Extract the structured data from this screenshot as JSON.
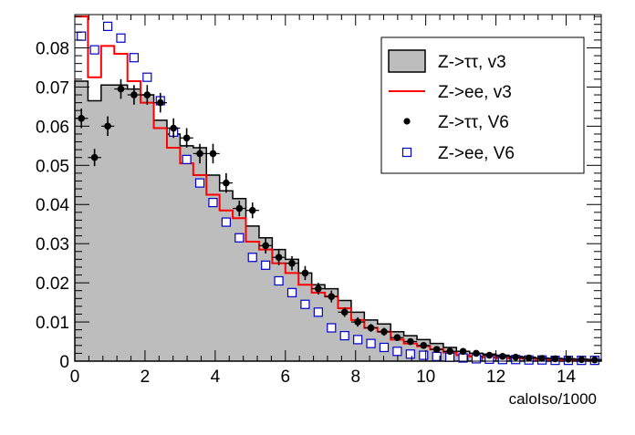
{
  "chart_data": {
    "type": "histogram",
    "xlabel": "caloIso/1000",
    "xlim": [
      0,
      15
    ],
    "ylim": [
      0,
      0.0885
    ],
    "bin_width": 0.375,
    "x_ticks": [
      "0",
      "2",
      "4",
      "6",
      "8",
      "10",
      "12",
      "14"
    ],
    "y_ticks": [
      "0",
      "0.01",
      "0.02",
      "0.03",
      "0.04",
      "0.05",
      "0.06",
      "0.07",
      "0.08"
    ],
    "legend_position": "top-right",
    "legend": {
      "h_v3": "Z->ττ, v3",
      "r_v3": "Z->ee, v3",
      "p_v6": "Z->ττ, V6",
      "b_v6": "Z->ee, V6"
    },
    "colors": {
      "h_v3_fill": "#bdbdbd",
      "h_v3_line": "#000000",
      "r_v3": "#ff0000",
      "p_v6": "#000000",
      "b_v6": "#0000cc"
    },
    "series": {
      "h_v3": [
        0.0715,
        0.0665,
        0.0705,
        0.0705,
        0.0695,
        0.068,
        0.0615,
        0.058,
        0.055,
        0.0545,
        0.0475,
        0.0435,
        0.0415,
        0.0345,
        0.0315,
        0.0285,
        0.026,
        0.0225,
        0.0195,
        0.0185,
        0.0155,
        0.0125,
        0.0105,
        0.0095,
        0.0075,
        0.0065,
        0.0055,
        0.0045,
        0.0035,
        0.0025,
        0.002,
        0.0018,
        0.0015,
        0.0012,
        0.001,
        0.0008,
        0.0007,
        0.0006,
        0.0005,
        0.0004
      ],
      "r_v3": [
        0.088,
        0.0725,
        0.0805,
        0.0785,
        0.0715,
        0.066,
        0.0595,
        0.0545,
        0.0505,
        0.0475,
        0.0425,
        0.0385,
        0.0365,
        0.0305,
        0.0285,
        0.025,
        0.0225,
        0.0195,
        0.0175,
        0.0165,
        0.0135,
        0.0105,
        0.0085,
        0.0075,
        0.0055,
        0.0045,
        0.0038,
        0.003,
        0.0022,
        0.0015,
        0.0012,
        0.001,
        0.0008,
        0.0007,
        0.0006,
        0.0005,
        0.0004,
        0.0003,
        0.0003,
        0.0002
      ],
      "p_v6": [
        0.062,
        0.052,
        0.06,
        0.0695,
        0.068,
        0.068,
        0.066,
        0.0595,
        0.057,
        0.053,
        0.053,
        0.0455,
        0.039,
        0.0385,
        0.0295,
        0.0265,
        0.025,
        0.0225,
        0.0185,
        0.0165,
        0.0125,
        0.01,
        0.0085,
        0.0075,
        0.006,
        0.005,
        0.004,
        0.003,
        0.0025,
        0.0025,
        0.002,
        0.0015,
        0.0012,
        0.001,
        0.0008,
        0.0007,
        0.0006,
        0.0005,
        0.0004,
        0.0003
      ],
      "b_v6": [
        0.083,
        0.0795,
        0.0855,
        0.0825,
        0.0775,
        0.0725,
        0.0665,
        0.0585,
        0.0515,
        0.0455,
        0.0405,
        0.0355,
        0.0315,
        0.0265,
        0.0245,
        0.0205,
        0.0175,
        0.0145,
        0.0125,
        0.0085,
        0.0065,
        0.0055,
        0.0045,
        0.0035,
        0.0025,
        0.0018,
        0.0015,
        0.0012,
        0.001,
        0.0008,
        0.0006,
        0.0005,
        0.0004,
        0.0004,
        0.0003,
        0.0003,
        0.0002,
        0.0002,
        0.0002,
        0.0002
      ],
      "p_err": [
        0.0025,
        0.0022,
        0.0025,
        0.0025,
        0.0025,
        0.0025,
        0.0025,
        0.0025,
        0.0025,
        0.0025,
        0.0025,
        0.0025,
        0.002,
        0.002,
        0.002,
        0.002,
        0.0018,
        0.0018,
        0.0015,
        0.0015,
        0.0012,
        0.0012,
        0.001,
        0.001,
        0.0008,
        0.0008,
        0.0007,
        0.0006,
        0.0006,
        0.0005,
        0.0005,
        0.0004,
        0.0004,
        0.0004,
        0.0003,
        0.0003,
        0.0003,
        0.0003,
        0.0002,
        0.0002
      ]
    }
  }
}
